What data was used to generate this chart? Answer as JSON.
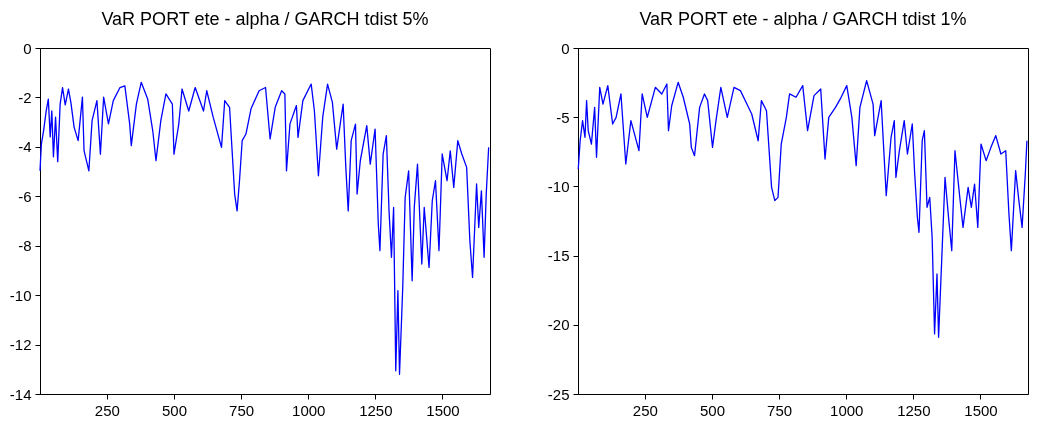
{
  "chart_data": [
    {
      "type": "line",
      "title": "VaR PORT ete - alpha / GARCH tdist 5%",
      "xlim": [
        1,
        1677
      ],
      "xticks": [
        250,
        500,
        750,
        1000,
        1250,
        1500
      ],
      "ylim": [
        -14,
        0
      ],
      "yticks": [
        -14,
        -12,
        -10,
        -8,
        -6,
        -4,
        -2,
        0
      ],
      "grid": false,
      "line_style": "solid",
      "series": [
        {
          "color": "#0000ff",
          "x": [
            1,
            6,
            15,
            24,
            32,
            39,
            45,
            51,
            59,
            67,
            76,
            85,
            95,
            107,
            116,
            128,
            143,
            159,
            165,
            183,
            195,
            213,
            226,
            238,
            256,
            274,
            299,
            317,
            335,
            341,
            360,
            378,
            402,
            421,
            433,
            451,
            470,
            494,
            500,
            518,
            530,
            555,
            579,
            610,
            622,
            646,
            677,
            689,
            707,
            726,
            735,
            744,
            754,
            768,
            787,
            817,
            841,
            858,
            877,
            901,
            913,
            919,
            932,
            956,
            962,
            980,
            1011,
            1023,
            1038,
            1054,
            1072,
            1090,
            1106,
            1121,
            1130,
            1140,
            1149,
            1160,
            1176,
            1182,
            1194,
            1218,
            1231,
            1249,
            1261,
            1267,
            1279,
            1291,
            1301,
            1310,
            1318,
            1326,
            1334,
            1340,
            1352,
            1361,
            1374,
            1387,
            1395,
            1407,
            1423,
            1432,
            1450,
            1462,
            1474,
            1487,
            1499,
            1517,
            1529,
            1542,
            1557,
            1572,
            1590,
            1602,
            1612,
            1627,
            1635,
            1645,
            1655,
            1663,
            1672
          ],
          "values": [
            -4.97,
            -3.9,
            -3.3,
            -2.55,
            -2.07,
            -3.6,
            -2.55,
            -4.4,
            -2.8,
            -4.6,
            -2.27,
            -1.6,
            -2.3,
            -1.66,
            -2.2,
            -3.2,
            -3.75,
            -1.99,
            -4.15,
            -4.97,
            -2.94,
            -2.13,
            -4.3,
            -1.99,
            -3.07,
            -2.13,
            -1.6,
            -1.53,
            -3.07,
            -3.95,
            -2.27,
            -1.39,
            -2.06,
            -3.35,
            -4.56,
            -2.94,
            -1.86,
            -2.27,
            -4.3,
            -3.07,
            -1.66,
            -2.55,
            -1.6,
            -2.55,
            -1.73,
            -2.8,
            -4.02,
            -2.13,
            -2.4,
            -5.91,
            -6.59,
            -5.37,
            -3.75,
            -3.48,
            -2.46,
            -1.73,
            -1.6,
            -3.68,
            -2.4,
            -1.73,
            -1.86,
            -4.97,
            -3.07,
            -2.33,
            -3.62,
            -2.13,
            -1.46,
            -2.54,
            -5.17,
            -2.8,
            -1.46,
            -2.2,
            -4.09,
            -2.94,
            -2.27,
            -4.83,
            -6.59,
            -3.75,
            -3.08,
            -5.91,
            -4.56,
            -3.14,
            -4.7,
            -3.28,
            -7.13,
            -8.2,
            -4.29,
            -3.55,
            -6.59,
            -8.47,
            -6.45,
            -13.06,
            -9.82,
            -13.2,
            -9.69,
            -6.05,
            -4.97,
            -9.42,
            -6.45,
            -4.7,
            -8.74,
            -6.45,
            -8.88,
            -6.18,
            -5.37,
            -8.2,
            -4.29,
            -5.37,
            -4.16,
            -5.64,
            -3.75,
            -4.29,
            -4.83,
            -7.8,
            -9.28,
            -5.5,
            -7.26,
            -5.78,
            -8.47,
            -5.91,
            -4.02
          ]
        }
      ]
    },
    {
      "type": "line",
      "title": "VaR PORT ete - alpha / GARCH tdist 1%",
      "xlim": [
        1,
        1677
      ],
      "xticks": [
        250,
        500,
        750,
        1000,
        1250,
        1500
      ],
      "ylim": [
        -25,
        0
      ],
      "yticks": [
        -25,
        -20,
        -15,
        -10,
        -5,
        0
      ],
      "grid": false,
      "line_style": "solid",
      "series": [
        {
          "color": "#0000ff",
          "x": [
            2,
            9,
            18,
            27,
            33,
            39,
            51,
            63,
            70,
            82,
            94,
            112,
            130,
            143,
            161,
            179,
            198,
            228,
            240,
            259,
            289,
            313,
            332,
            338,
            350,
            374,
            393,
            417,
            423,
            435,
            454,
            472,
            484,
            502,
            515,
            533,
            557,
            582,
            606,
            630,
            648,
            672,
            684,
            703,
            722,
            734,
            746,
            758,
            777,
            789,
            813,
            838,
            856,
            880,
            905,
            921,
            935,
            960,
            978,
            1002,
            1021,
            1037,
            1051,
            1076,
            1100,
            1106,
            1130,
            1149,
            1167,
            1179,
            1185,
            1198,
            1216,
            1228,
            1246,
            1255,
            1265,
            1271,
            1283,
            1291,
            1301,
            1311,
            1320,
            1329,
            1338,
            1344,
            1356,
            1368,
            1381,
            1393,
            1405,
            1423,
            1435,
            1454,
            1466,
            1478,
            1490,
            1502,
            1521,
            1539,
            1557,
            1576,
            1594,
            1606,
            1615,
            1631,
            1643,
            1655,
            1667,
            1673
          ],
          "values": [
            -8.74,
            -6.7,
            -5.25,
            -6.45,
            -3.8,
            -5.97,
            -6.94,
            -4.29,
            -7.9,
            -2.84,
            -4.05,
            -2.72,
            -5.49,
            -5.01,
            -3.32,
            -8.38,
            -5.25,
            -7.42,
            -3.32,
            -5.01,
            -2.84,
            -3.32,
            -2.6,
            -5.97,
            -4.17,
            -2.48,
            -3.56,
            -5.49,
            -7.18,
            -7.78,
            -4.29,
            -3.32,
            -3.8,
            -7.18,
            -5.25,
            -2.84,
            -5.01,
            -2.84,
            -3.08,
            -4.05,
            -4.77,
            -6.7,
            -3.8,
            -4.53,
            -10.07,
            -11.03,
            -10.79,
            -6.94,
            -5.01,
            -3.32,
            -3.56,
            -2.72,
            -5.97,
            -3.44,
            -2.96,
            -8.02,
            -5.01,
            -4.29,
            -3.68,
            -2.72,
            -5.01,
            -8.5,
            -4.29,
            -2.36,
            -4.05,
            -6.33,
            -3.8,
            -10.67,
            -6.45,
            -5.25,
            -9.35,
            -7.42,
            -5.25,
            -7.66,
            -5.49,
            -9.11,
            -12.23,
            -13.32,
            -6.7,
            -5.97,
            -11.51,
            -10.79,
            -13.68,
            -20.66,
            -16.33,
            -20.9,
            -15.12,
            -9.35,
            -12.23,
            -14.64,
            -7.42,
            -10.79,
            -12.96,
            -10.07,
            -11.51,
            -9.83,
            -12.96,
            -6.94,
            -8.14,
            -7.18,
            -6.33,
            -7.66,
            -7.42,
            -11.99,
            -14.64,
            -8.86,
            -11.03,
            -12.96,
            -9.11,
            -6.7
          ]
        }
      ]
    }
  ]
}
